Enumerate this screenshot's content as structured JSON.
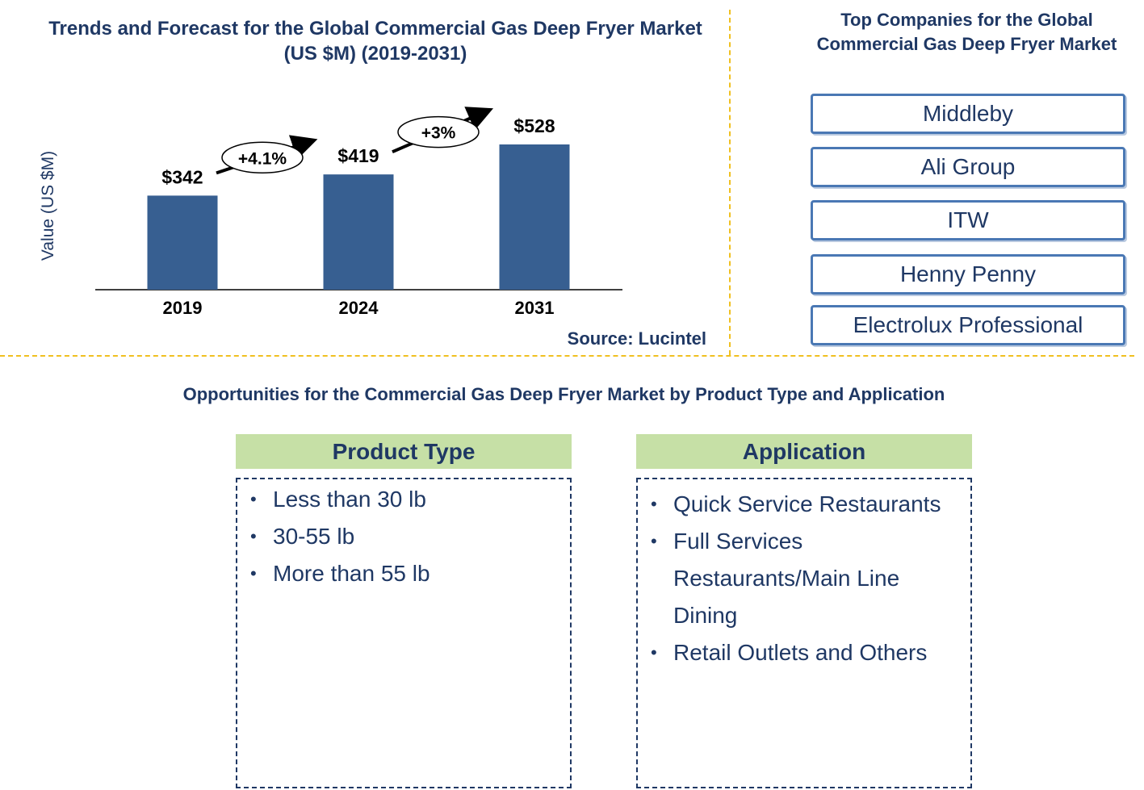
{
  "chart_data": {
    "type": "bar",
    "title": "Trends and Forecast for the Global Commercial Gas Deep Fryer Market (US $M) (2019-2031)",
    "ylabel": "Value (US $M)",
    "xlabel": "",
    "categories": [
      "2019",
      "2024",
      "2031"
    ],
    "values": [
      342,
      419,
      528
    ],
    "data_labels": [
      "$342",
      "$419",
      "$528"
    ],
    "growth_annotations": [
      "+4.1%",
      "+3%"
    ],
    "ylim": [
      0,
      600
    ],
    "bar_color": "#375f91",
    "grid": false,
    "source": "Source: Lucintel"
  },
  "companies": {
    "title": "Top  Companies for the Global Commercial Gas Deep Fryer Market",
    "items": [
      "Middleby",
      "Ali Group",
      "ITW",
      "Henny Penny",
      "Electrolux Professional"
    ]
  },
  "opportunities": {
    "title": "Opportunities for the Commercial Gas Deep Fryer Market  by Product Type and Application",
    "product_type": {
      "header": "Product Type",
      "items": [
        "Less than 30 lb",
        "30-55 lb",
        "More than 55 lb"
      ]
    },
    "application": {
      "header": "Application",
      "items": [
        "Quick Service Restaurants",
        "Full Services Restaurants/Main Line Dining",
        "Retail Outlets and Others"
      ]
    }
  }
}
